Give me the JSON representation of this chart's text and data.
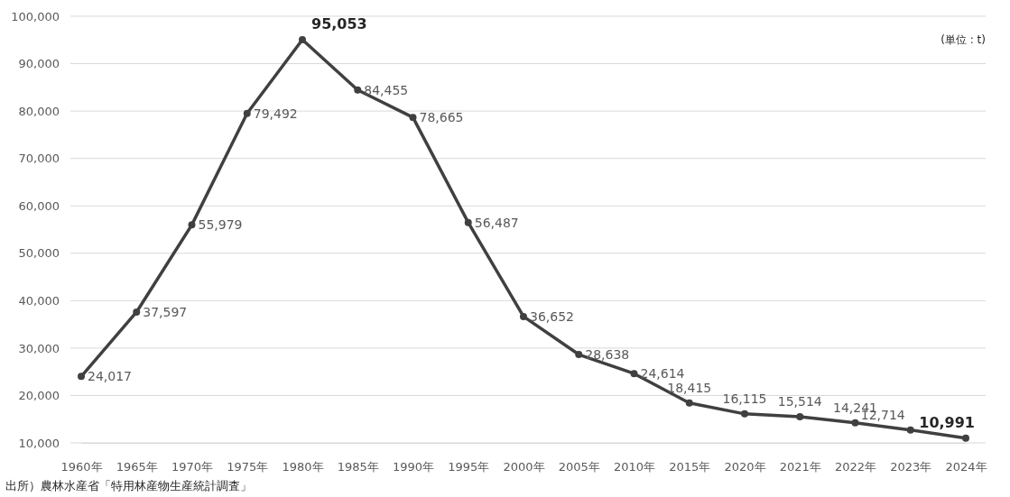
{
  "chart_data": {
    "type": "line",
    "categories": [
      "1960年",
      "1965年",
      "1970年",
      "1975年",
      "1980年",
      "1985年",
      "1990年",
      "1995年",
      "2000年",
      "2005年",
      "2010年",
      "2015年",
      "2020年",
      "2021年",
      "2022年",
      "2023年",
      "2024年"
    ],
    "series": [
      {
        "color": "#404040",
        "values": [
          24017,
          37597,
          55979,
          79492,
          95053,
          84455,
          78665,
          56487,
          36652,
          28638,
          24614,
          18415,
          16115,
          15514,
          14241,
          12714,
          10991
        ],
        "value_labels": [
          "24,017",
          "37,597",
          "55,979",
          "79,492",
          "95,053",
          "84,455",
          "78,665",
          "56,487",
          "36,652",
          "28,638",
          "24,614",
          "18,415",
          "16,115",
          "15,514",
          "14,241",
          "12,714",
          "10,991"
        ]
      }
    ],
    "ylim": [
      10000,
      100000
    ],
    "yticks": [
      {
        "value": 10000,
        "label": "10,000"
      },
      {
        "value": 20000,
        "label": "20,000"
      },
      {
        "value": 30000,
        "label": "30,000"
      },
      {
        "value": 40000,
        "label": "40,000"
      },
      {
        "value": 50000,
        "label": "50,000"
      },
      {
        "value": 60000,
        "label": "60,000"
      },
      {
        "value": 70000,
        "label": "70,000"
      },
      {
        "value": 80000,
        "label": "80,000"
      },
      {
        "value": 90000,
        "label": "90,000"
      },
      {
        "value": 100000,
        "label": "100,000"
      }
    ],
    "grid": "y",
    "marker": "circle",
    "line_style": "solid",
    "annotations": [
      "(単位 : t)",
      "出所）農林水産省「特用林産物生産統計調査」"
    ]
  }
}
